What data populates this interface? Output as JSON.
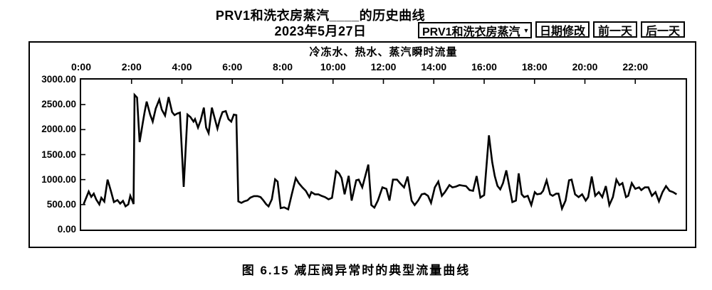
{
  "header": {
    "title_line1": "PRV1和洗衣房蒸汽____的历史曲线",
    "title_line2": "2023年5月27日"
  },
  "toolbar": {
    "series_select": {
      "label": "PRV1和洗衣房蒸汽",
      "arrow": "▼"
    },
    "buttons": [
      {
        "label": "日期修改"
      },
      {
        "label": "前一天"
      },
      {
        "label": "后一天"
      }
    ]
  },
  "caption": {
    "text": "图 6.15  减压阀异常时的典型流量曲线"
  },
  "chart_data": {
    "type": "line",
    "title": "冷冻水、热水、蒸汽瞬时流量",
    "x_axis": {
      "position": "top",
      "tick_labels": [
        "0:00",
        "2:00",
        "4:00",
        "6:00",
        "8:00",
        "10:00",
        "12:00",
        "14:00",
        "16:00",
        "18:00",
        "20:00",
        "22:00"
      ],
      "range_hours": [
        0,
        24
      ],
      "grid": false
    },
    "y_axis": {
      "tick_labels": [
        "3000.00",
        "2500.00",
        "2000.00",
        "1500.00",
        "1000.00",
        "500.00",
        "0.00"
      ],
      "range": [
        0,
        3000
      ],
      "grid": false
    },
    "series": [
      {
        "name": "蒸汽瞬时流量",
        "color": "#000000",
        "points": [
          [
            0.1,
            510
          ],
          [
            0.3,
            760
          ],
          [
            0.4,
            655
          ],
          [
            0.5,
            720
          ],
          [
            0.6,
            600
          ],
          [
            0.72,
            505
          ],
          [
            0.8,
            635
          ],
          [
            0.92,
            560
          ],
          [
            1.05,
            1000
          ],
          [
            1.18,
            775
          ],
          [
            1.3,
            550
          ],
          [
            1.44,
            590
          ],
          [
            1.55,
            520
          ],
          [
            1.66,
            575
          ],
          [
            1.76,
            465
          ],
          [
            1.87,
            505
          ],
          [
            1.95,
            675
          ],
          [
            2.03,
            580
          ],
          [
            2.08,
            510
          ],
          [
            2.12,
            2695
          ],
          [
            2.22,
            2640
          ],
          [
            2.32,
            1750
          ],
          [
            2.45,
            2150
          ],
          [
            2.52,
            2350
          ],
          [
            2.6,
            2560
          ],
          [
            2.74,
            2300
          ],
          [
            2.84,
            2160
          ],
          [
            2.96,
            2420
          ],
          [
            3.1,
            2600
          ],
          [
            3.2,
            2400
          ],
          [
            3.33,
            2280
          ],
          [
            3.47,
            2650
          ],
          [
            3.61,
            2350
          ],
          [
            3.71,
            2290
          ],
          [
            3.81,
            2320
          ],
          [
            3.92,
            2340
          ],
          [
            4.07,
            855
          ],
          [
            4.22,
            2300
          ],
          [
            4.34,
            2250
          ],
          [
            4.46,
            2160
          ],
          [
            4.52,
            2210
          ],
          [
            4.64,
            2040
          ],
          [
            4.74,
            2180
          ],
          [
            4.87,
            2440
          ],
          [
            4.96,
            2040
          ],
          [
            5.06,
            1930
          ],
          [
            5.19,
            2440
          ],
          [
            5.29,
            2250
          ],
          [
            5.41,
            2020
          ],
          [
            5.51,
            2210
          ],
          [
            5.61,
            2350
          ],
          [
            5.74,
            2370
          ],
          [
            5.85,
            2210
          ],
          [
            5.96,
            2160
          ],
          [
            6.06,
            2300
          ],
          [
            6.16,
            2290
          ],
          [
            6.24,
            565
          ],
          [
            6.36,
            535
          ],
          [
            6.47,
            565
          ],
          [
            6.6,
            585
          ],
          [
            6.72,
            640
          ],
          [
            6.86,
            670
          ],
          [
            7.0,
            670
          ],
          [
            7.12,
            650
          ],
          [
            7.24,
            580
          ],
          [
            7.34,
            510
          ],
          [
            7.44,
            465
          ],
          [
            7.57,
            605
          ],
          [
            7.7,
            1005
          ],
          [
            7.8,
            960
          ],
          [
            7.92,
            430
          ],
          [
            8.06,
            445
          ],
          [
            8.22,
            405
          ],
          [
            8.36,
            700
          ],
          [
            8.52,
            1030
          ],
          [
            8.64,
            930
          ],
          [
            8.78,
            845
          ],
          [
            8.92,
            775
          ],
          [
            9.06,
            650
          ],
          [
            9.14,
            750
          ],
          [
            9.28,
            705
          ],
          [
            9.42,
            705
          ],
          [
            9.54,
            675
          ],
          [
            9.68,
            650
          ],
          [
            9.82,
            605
          ],
          [
            9.96,
            635
          ],
          [
            10.12,
            1170
          ],
          [
            10.24,
            1125
          ],
          [
            10.34,
            1030
          ],
          [
            10.46,
            705
          ],
          [
            10.62,
            1075
          ],
          [
            10.74,
            580
          ],
          [
            10.92,
            985
          ],
          [
            11.02,
            1000
          ],
          [
            11.16,
            845
          ],
          [
            11.4,
            1300
          ],
          [
            11.52,
            490
          ],
          [
            11.64,
            440
          ],
          [
            11.78,
            580
          ],
          [
            11.96,
            845
          ],
          [
            12.12,
            815
          ],
          [
            12.24,
            580
          ],
          [
            12.38,
            1000
          ],
          [
            12.54,
            1000
          ],
          [
            12.66,
            930
          ],
          [
            12.82,
            845
          ],
          [
            12.96,
            1060
          ],
          [
            13.12,
            580
          ],
          [
            13.24,
            490
          ],
          [
            13.38,
            580
          ],
          [
            13.52,
            705
          ],
          [
            13.64,
            720
          ],
          [
            13.77,
            675
          ],
          [
            13.89,
            535
          ],
          [
            14.04,
            845
          ],
          [
            14.18,
            960
          ],
          [
            14.32,
            675
          ],
          [
            14.44,
            750
          ],
          [
            14.62,
            890
          ],
          [
            14.74,
            845
          ],
          [
            14.88,
            860
          ],
          [
            15.02,
            890
          ],
          [
            15.14,
            880
          ],
          [
            15.28,
            870
          ],
          [
            15.42,
            790
          ],
          [
            15.56,
            775
          ],
          [
            15.7,
            1070
          ],
          [
            15.85,
            640
          ],
          [
            16.0,
            690
          ],
          [
            16.19,
            1886
          ],
          [
            16.32,
            1350
          ],
          [
            16.42,
            1070
          ],
          [
            16.53,
            875
          ],
          [
            16.64,
            805
          ],
          [
            16.75,
            930
          ],
          [
            16.88,
            1185
          ],
          [
            17.02,
            805
          ],
          [
            17.12,
            550
          ],
          [
            17.26,
            580
          ],
          [
            17.37,
            1125
          ],
          [
            17.49,
            705
          ],
          [
            17.59,
            650
          ],
          [
            17.73,
            675
          ],
          [
            17.87,
            490
          ],
          [
            18.01,
            750
          ],
          [
            18.1,
            705
          ],
          [
            18.25,
            720
          ],
          [
            18.34,
            775
          ],
          [
            18.48,
            985
          ],
          [
            18.62,
            705
          ],
          [
            18.72,
            675
          ],
          [
            18.86,
            720
          ],
          [
            18.95,
            720
          ],
          [
            19.09,
            420
          ],
          [
            19.23,
            580
          ],
          [
            19.37,
            985
          ],
          [
            19.47,
            1000
          ],
          [
            19.61,
            705
          ],
          [
            19.75,
            650
          ],
          [
            19.89,
            705
          ],
          [
            20.03,
            580
          ],
          [
            20.13,
            650
          ],
          [
            20.27,
            1060
          ],
          [
            20.41,
            675
          ],
          [
            20.55,
            750
          ],
          [
            20.69,
            650
          ],
          [
            20.83,
            870
          ],
          [
            20.97,
            490
          ],
          [
            21.11,
            650
          ],
          [
            21.25,
            1000
          ],
          [
            21.37,
            890
          ],
          [
            21.49,
            930
          ],
          [
            21.63,
            650
          ],
          [
            21.72,
            675
          ],
          [
            21.86,
            930
          ],
          [
            22.0,
            815
          ],
          [
            22.15,
            845
          ],
          [
            22.24,
            790
          ],
          [
            22.38,
            845
          ],
          [
            22.52,
            845
          ],
          [
            22.66,
            675
          ],
          [
            22.8,
            750
          ],
          [
            22.94,
            565
          ],
          [
            23.08,
            750
          ],
          [
            23.22,
            870
          ],
          [
            23.36,
            775
          ],
          [
            23.5,
            750
          ],
          [
            23.64,
            705
          ]
        ]
      }
    ],
    "line_color": "#000000",
    "background": "#ffffff"
  }
}
